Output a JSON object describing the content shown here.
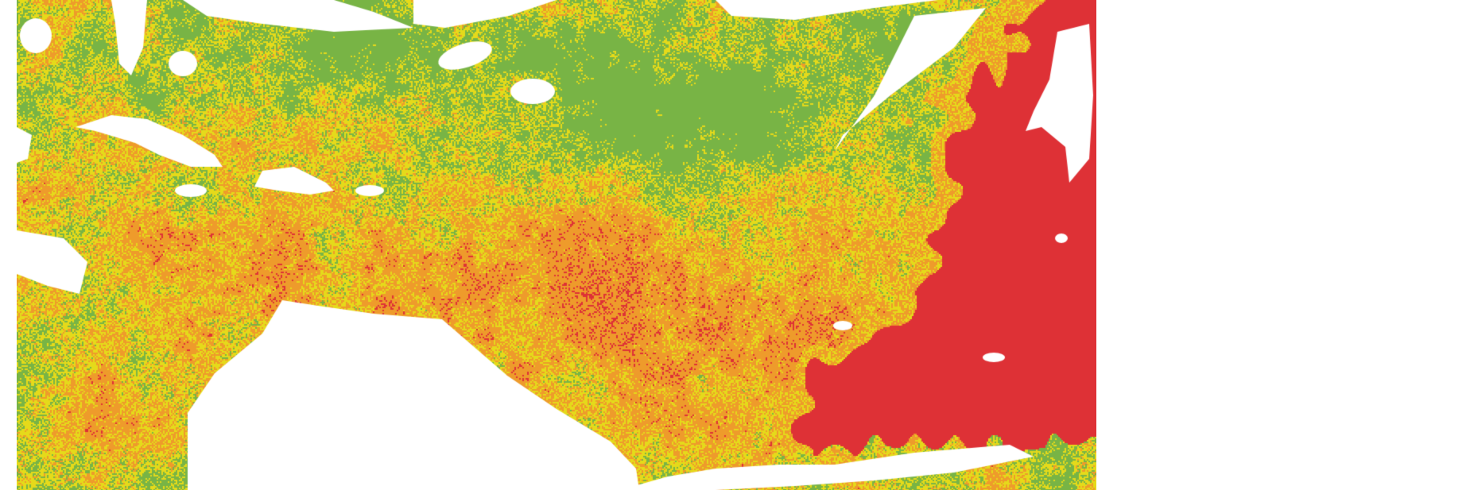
{
  "map": {
    "type": "categorical raster",
    "no_data_color": "#ffffff",
    "class_colors": {
      "low": "#78b445",
      "moderate": "#e5da1a",
      "high": "#ee9b2b",
      "very_high": "#de3136"
    }
  }
}
